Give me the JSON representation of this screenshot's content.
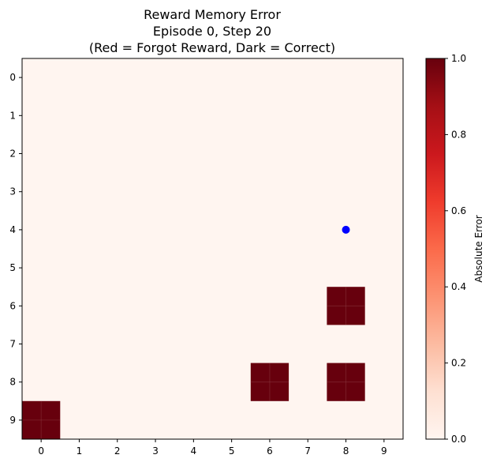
{
  "chart_data": {
    "type": "heatmap",
    "title_lines": [
      "Reward Memory Error",
      "Episode 0, Step 20",
      "(Red = Forgot Reward, Dark = Correct)"
    ],
    "x_ticks": [
      "0",
      "1",
      "2",
      "3",
      "4",
      "5",
      "6",
      "7",
      "8",
      "9"
    ],
    "y_ticks": [
      "0",
      "1",
      "2",
      "3",
      "4",
      "5",
      "6",
      "7",
      "8",
      "9"
    ],
    "grid_size": 10,
    "cells": [
      {
        "row": 6,
        "col": 8,
        "value": 1.0
      },
      {
        "row": 8,
        "col": 6,
        "value": 1.0
      },
      {
        "row": 8,
        "col": 8,
        "value": 1.0
      },
      {
        "row": 9,
        "col": 0,
        "value": 1.0
      }
    ],
    "default_value": 0.0,
    "agent": {
      "row": 4,
      "col": 8,
      "color": "#0000ff"
    },
    "colormap": "Reds",
    "colorbar": {
      "label": "Absolute Error",
      "range": [
        0.0,
        1.0
      ],
      "ticks": [
        "0.0",
        "0.2",
        "0.4",
        "0.6",
        "0.8",
        "1.0"
      ],
      "tick_values": [
        0.0,
        0.2,
        0.4,
        0.6,
        0.8,
        1.0
      ]
    },
    "colors": {
      "low": "#fff5f0",
      "high": "#67000d"
    }
  }
}
